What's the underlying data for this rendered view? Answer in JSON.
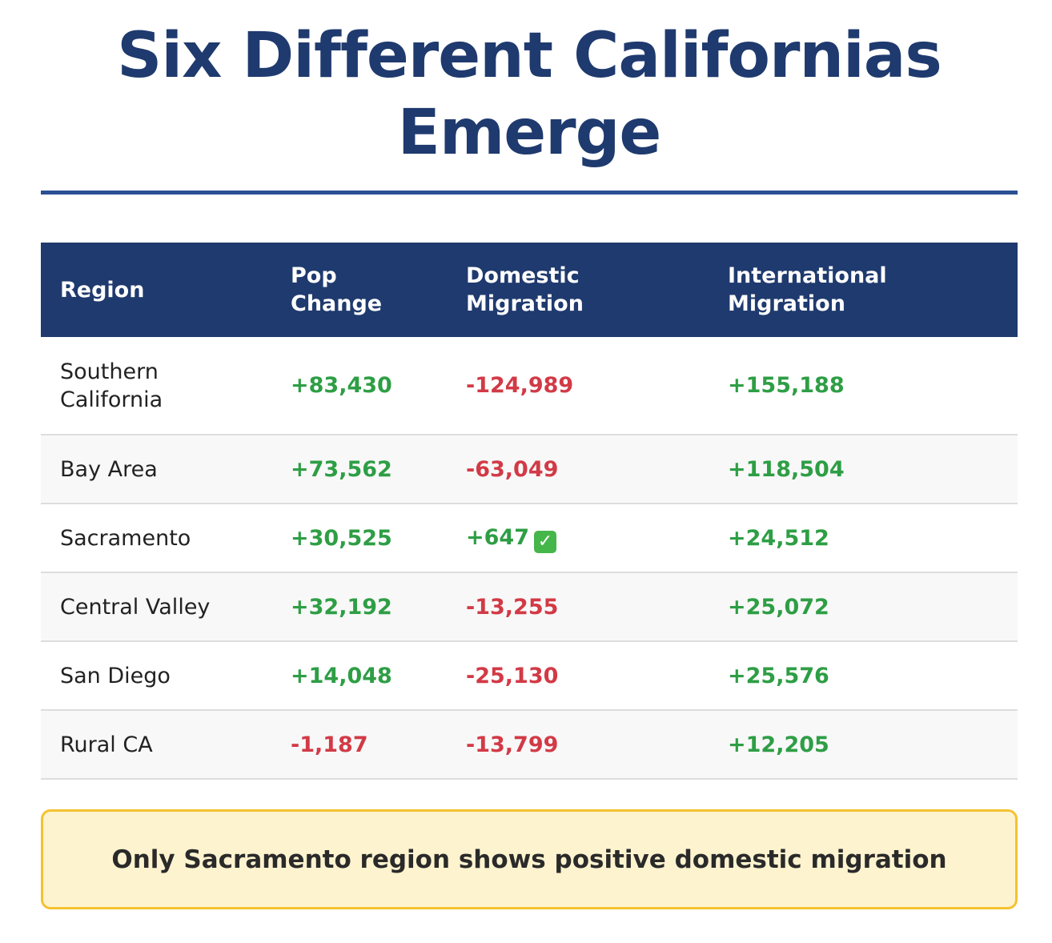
{
  "title_line1": "Six Different Californias",
  "title_line2": "Emerge",
  "chart_data": {
    "type": "table",
    "columns": [
      "Region",
      "Pop Change",
      "Domestic Migration",
      "International Migration"
    ],
    "column_lines": [
      [
        "Region"
      ],
      [
        "Pop",
        "Change"
      ],
      [
        "Domestic",
        "Migration"
      ],
      [
        "International",
        "Migration"
      ]
    ],
    "rows": [
      {
        "region_lines": [
          "Southern",
          "California"
        ],
        "region": "Southern California",
        "pop_change": "+83,430",
        "pop_change_value": 83430,
        "domestic": "-124,989",
        "domestic_value": -124989,
        "international": "+155,188",
        "international_value": 155188
      },
      {
        "region_lines": [
          "Bay Area"
        ],
        "region": "Bay Area",
        "pop_change": "+73,562",
        "pop_change_value": 73562,
        "domestic": "-63,049",
        "domestic_value": -63049,
        "international": "+118,504",
        "international_value": 118504
      },
      {
        "region_lines": [
          "Sacramento"
        ],
        "region": "Sacramento",
        "pop_change": "+30,525",
        "pop_change_value": 30525,
        "domestic": "+647",
        "domestic_value": 647,
        "domestic_marker": "check-mark-icon",
        "international": "+24,512",
        "international_value": 24512
      },
      {
        "region_lines": [
          "Central Valley"
        ],
        "region": "Central Valley",
        "pop_change": "+32,192",
        "pop_change_value": 32192,
        "domestic": "-13,255",
        "domestic_value": -13255,
        "international": "+25,072",
        "international_value": 25072
      },
      {
        "region_lines": [
          "San Diego"
        ],
        "region": "San Diego",
        "pop_change": "+14,048",
        "pop_change_value": 14048,
        "domestic": "-25,130",
        "domestic_value": -25130,
        "international": "+25,576",
        "international_value": 25576
      },
      {
        "region_lines": [
          "Rural CA"
        ],
        "region": "Rural CA",
        "pop_change": "-1,187",
        "pop_change_value": -1187,
        "domestic": "-13,799",
        "domestic_value": -13799,
        "international": "+12,205",
        "international_value": 12205
      }
    ],
    "colors": {
      "positive": "#2e9e45",
      "negative": "#d23a46",
      "header_bg": "#1f3a6e"
    }
  },
  "callout": "Only Sacramento region shows positive domestic migration"
}
